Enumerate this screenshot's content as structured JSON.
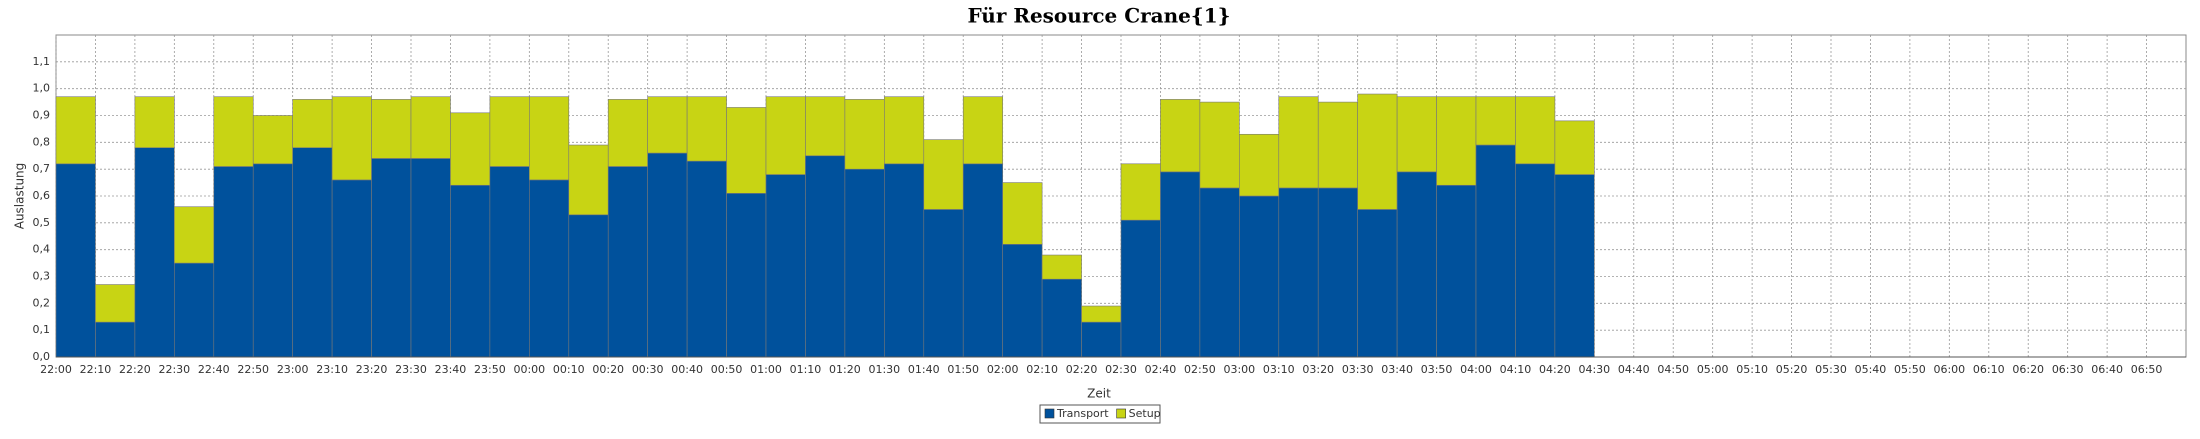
{
  "chart_data": {
    "type": "stacked_bar",
    "title": "Für Resource Crane{1}",
    "x_label": "Zeit",
    "y_label": "Auslastung",
    "categories": [
      "22:00",
      "22:10",
      "22:20",
      "22:30",
      "22:40",
      "22:50",
      "23:00",
      "23:10",
      "23:20",
      "23:30",
      "23:40",
      "23:50",
      "00:00",
      "00:10",
      "00:20",
      "00:30",
      "00:40",
      "00:50",
      "01:00",
      "01:10",
      "01:20",
      "01:30",
      "01:40",
      "01:50",
      "02:00",
      "02:10",
      "02:20",
      "02:30",
      "02:40",
      "02:50",
      "03:00",
      "03:10",
      "03:20",
      "03:30",
      "03:40",
      "03:50",
      "04:00",
      "04:10",
      "04:20",
      "04:30",
      "04:40",
      "04:50",
      "05:00",
      "05:10",
      "05:20",
      "05:30",
      "05:40",
      "05:50",
      "06:00",
      "06:10",
      "06:20",
      "06:30",
      "06:40",
      "06:50"
    ],
    "series": [
      {
        "name": "Transport",
        "color": "#00519c",
        "values": [
          0.72,
          0.13,
          0.78,
          0.35,
          0.71,
          0.72,
          0.78,
          0.66,
          0.74,
          0.74,
          0.64,
          0.71,
          0.66,
          0.53,
          0.71,
          0.76,
          0.73,
          0.61,
          0.68,
          0.75,
          0.7,
          0.72,
          0.55,
          0.72,
          0.42,
          0.29,
          0.13,
          0.51,
          0.69,
          0.63,
          0.6,
          0.63,
          0.63,
          0.55,
          0.69,
          0.64,
          0.79,
          0.72,
          0.68,
          null,
          null,
          null,
          null,
          null,
          null,
          null,
          null,
          null,
          null,
          null,
          null,
          null,
          null,
          null
        ]
      },
      {
        "name": "Setup",
        "color": "#c8d414",
        "values": [
          0.25,
          0.14,
          0.19,
          0.21,
          0.26,
          0.18,
          0.18,
          0.31,
          0.22,
          0.23,
          0.27,
          0.26,
          0.31,
          0.26,
          0.25,
          0.21,
          0.24,
          0.32,
          0.29,
          0.22,
          0.26,
          0.25,
          0.26,
          0.25,
          0.23,
          0.09,
          0.06,
          0.21,
          0.27,
          0.32,
          0.23,
          0.34,
          0.32,
          0.43,
          0.28,
          0.33,
          0.18,
          0.25,
          0.2,
          null,
          null,
          null,
          null,
          null,
          null,
          null,
          null,
          null,
          null,
          null,
          null,
          null,
          null,
          null
        ]
      }
    ],
    "ylim": [
      0,
      1.2
    ],
    "yticks": [
      {
        "value": 0,
        "label": "0,0"
      },
      {
        "value": 0.1,
        "label": "0,1"
      },
      {
        "value": 0.2,
        "label": "0,2"
      },
      {
        "value": 0.3,
        "label": "0,3"
      },
      {
        "value": 0.4,
        "label": "0,4"
      },
      {
        "value": 0.5,
        "label": "0,5"
      },
      {
        "value": 0.6,
        "label": "0,6"
      },
      {
        "value": 0.7,
        "label": "0,7"
      },
      {
        "value": 0.8,
        "label": "0,8"
      },
      {
        "value": 0.9,
        "label": "0,9"
      },
      {
        "value": 1,
        "label": "1,0"
      },
      {
        "value": 1.1,
        "label": "1,1"
      }
    ],
    "grid": true,
    "legend": "bottom"
  }
}
